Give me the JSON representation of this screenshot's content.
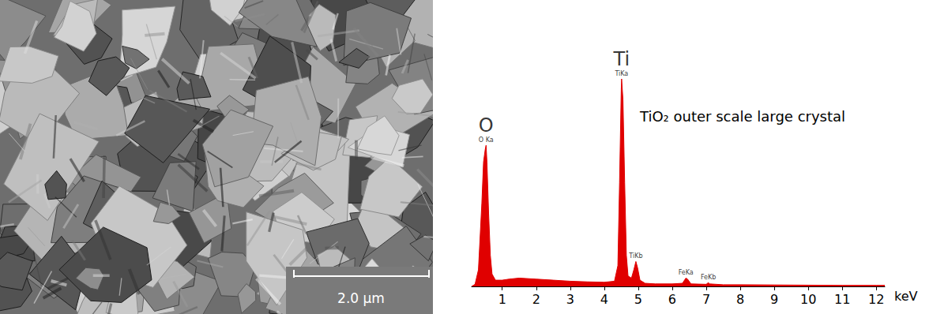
{
  "chart_data": {
    "type": "area",
    "annotation": "TiO₂ outer scale large crystal",
    "x": [
      0.1,
      0.2,
      0.3,
      0.4,
      0.45,
      0.5,
      0.525,
      0.55,
      0.6,
      0.65,
      0.7,
      0.8,
      1.0,
      1.2,
      1.5,
      2.0,
      2.5,
      3.0,
      3.5,
      4.0,
      4.3,
      4.4,
      4.45,
      4.5,
      4.51,
      4.55,
      4.6,
      4.65,
      4.7,
      4.8,
      4.87,
      4.93,
      4.98,
      5.05,
      5.2,
      5.5,
      6.0,
      6.3,
      6.4,
      6.45,
      6.55,
      7.0,
      7.06,
      7.1,
      7.5,
      8.0,
      9.0,
      10.0,
      11.0,
      12.0,
      12.25
    ],
    "values": [
      0,
      1,
      8,
      40,
      60,
      66,
      68,
      60,
      35,
      15,
      6,
      3,
      3,
      3.5,
      4,
      3.5,
      3,
      2.5,
      2.2,
      2,
      2.5,
      10,
      50,
      95,
      100,
      90,
      50,
      15,
      5,
      4,
      8,
      12,
      9,
      3,
      1.5,
      1.2,
      1.2,
      1.5,
      4,
      3.5,
      1.2,
      1,
      1.8,
      1.2,
      0.8,
      0.8,
      0.7,
      0.6,
      0.5,
      0.5,
      0.5
    ],
    "color": "#e00000",
    "xlim": [
      0.1,
      12.25
    ],
    "xticks": [
      1,
      2,
      3,
      4,
      5,
      6,
      7,
      8,
      9,
      10,
      11,
      12
    ],
    "ylim": [
      0,
      100
    ],
    "x_label": "keV",
    "tick_labels": "x",
    "grid": false,
    "peaks": [
      {
        "element": "O",
        "line": "O Ka",
        "x": 0.525,
        "y": 68
      },
      {
        "element": "Ti",
        "line": "TiKa",
        "x": 4.51,
        "y": 100
      },
      {
        "line": "TiKb",
        "x": 4.93,
        "y": 12
      },
      {
        "line": "FeKa",
        "x": 6.4,
        "y": 4
      },
      {
        "line": "FeKb",
        "x": 7.06,
        "y": 1.8
      }
    ]
  },
  "micrograph": {
    "scale_bar": "2.0 µm"
  }
}
